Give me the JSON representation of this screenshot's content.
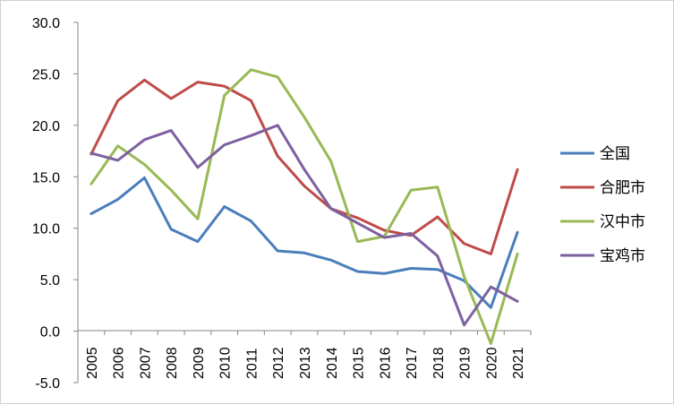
{
  "chart_data": {
    "type": "line",
    "title": "",
    "xlabel": "",
    "ylabel": "",
    "ylim": [
      -5,
      30
    ],
    "yticks": [
      -5,
      0,
      5,
      10,
      15,
      20,
      25,
      30
    ],
    "ytick_labels": [
      "-5.0",
      "0.0",
      "5.0",
      "10.0",
      "15.0",
      "20.0",
      "25.0",
      "30.0"
    ],
    "grid": false,
    "legend_position": "right",
    "categories": [
      "2005",
      "2006",
      "2007",
      "2008",
      "2009",
      "2010",
      "2011",
      "2012",
      "2013",
      "2014",
      "2015",
      "2016",
      "2017",
      "2018",
      "2019",
      "2020",
      "2021"
    ],
    "series": [
      {
        "name": "全国",
        "color": "#4a7ebb",
        "values": [
          11.4,
          12.8,
          14.9,
          9.9,
          8.7,
          12.1,
          10.7,
          7.8,
          7.6,
          6.9,
          5.8,
          5.6,
          6.1,
          6.0,
          4.9,
          2.3,
          9.6
        ]
      },
      {
        "name": "合肥市",
        "color": "#be4b48",
        "values": [
          17.2,
          22.4,
          24.4,
          22.6,
          24.2,
          23.8,
          22.4,
          17.0,
          14.1,
          11.9,
          11.0,
          9.8,
          9.3,
          11.1,
          8.5,
          7.5,
          15.7
        ]
      },
      {
        "name": "汉中市",
        "color": "#98b954",
        "values": [
          14.3,
          18.0,
          16.2,
          13.7,
          10.9,
          22.9,
          25.4,
          24.7,
          20.8,
          16.5,
          8.7,
          9.2,
          13.7,
          14.0,
          5.3,
          -1.2,
          7.5
        ]
      },
      {
        "name": "宝鸡市",
        "color": "#7d60a0",
        "values": [
          17.3,
          16.6,
          18.6,
          19.5,
          15.9,
          18.1,
          19.0,
          20.0,
          15.7,
          11.9,
          10.5,
          9.1,
          9.5,
          7.3,
          0.6,
          4.3,
          2.9
        ]
      }
    ]
  }
}
